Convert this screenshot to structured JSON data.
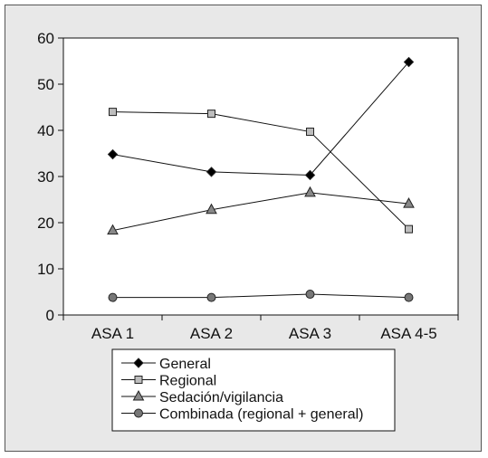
{
  "chart_data": {
    "type": "line",
    "categories": [
      "ASA 1",
      "ASA 2",
      "ASA 3",
      "ASA 4-5"
    ],
    "ylim": [
      0,
      60
    ],
    "yticks": [
      0,
      10,
      20,
      30,
      40,
      50,
      60
    ],
    "grid": false,
    "legend_position": "bottom",
    "series": [
      {
        "name": "General",
        "marker": "diamond",
        "color": "#000000",
        "values": [
          34.8,
          31.0,
          30.3,
          54.8
        ]
      },
      {
        "name": "Regional",
        "marker": "square",
        "color": "#bdbdbd",
        "values": [
          44.0,
          43.6,
          39.7,
          18.6
        ]
      },
      {
        "name": "Sedación/vigilancia",
        "marker": "triangle",
        "color": "#888888",
        "values": [
          18.3,
          22.8,
          26.5,
          24.1
        ]
      },
      {
        "name": "Combinada (regional + general)",
        "marker": "circle",
        "color": "#777777",
        "values": [
          3.8,
          3.8,
          4.5,
          3.8
        ]
      }
    ]
  }
}
